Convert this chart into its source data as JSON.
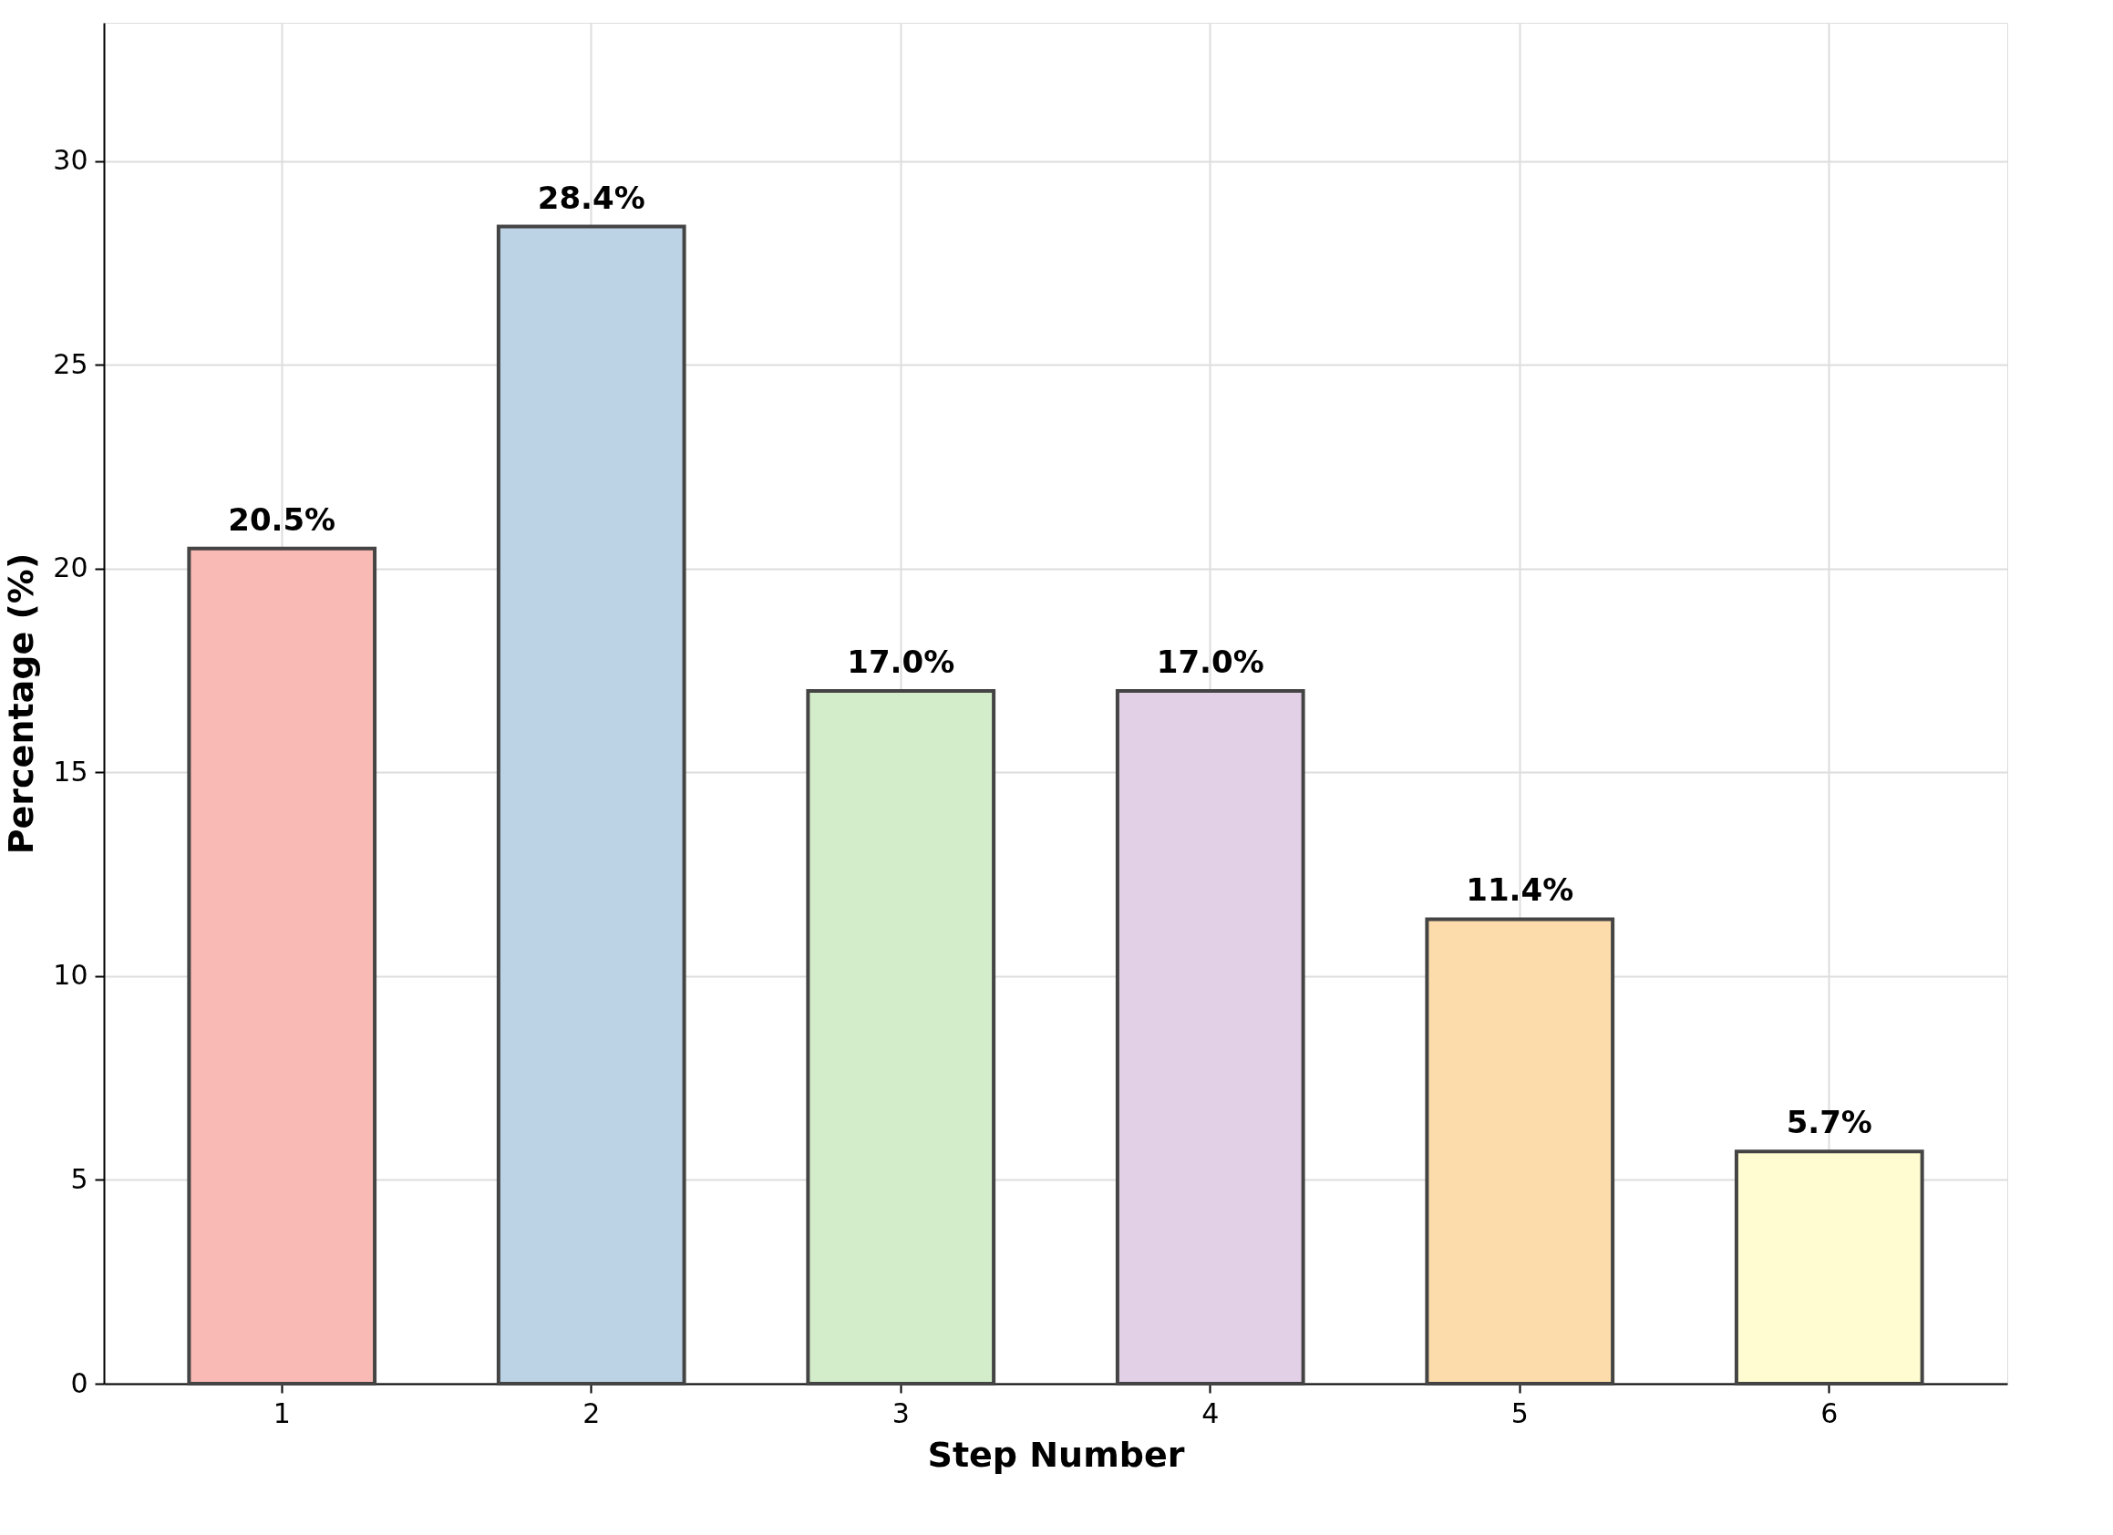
{
  "chart_data": {
    "type": "bar",
    "xlabel": "Step Number",
    "ylabel": "Percentage (%)",
    "categories": [
      "1",
      "2",
      "3",
      "4",
      "5",
      "6"
    ],
    "values": [
      20.5,
      28.4,
      17.0,
      17.0,
      11.4,
      5.7
    ],
    "colors": [
      "#f9bab5",
      "#bcd3e6",
      "#d3ecca",
      "#e2d0e7",
      "#fddcac",
      "#fffcd1"
    ],
    "value_labels": [
      "20.5%",
      "28.4%",
      "17.0%",
      "17.0%",
      "11.4%",
      "5.7%"
    ],
    "ylim": [
      0,
      33.4
    ],
    "yticks": [
      0,
      5,
      10,
      15,
      20,
      25,
      30
    ],
    "grid": true
  }
}
